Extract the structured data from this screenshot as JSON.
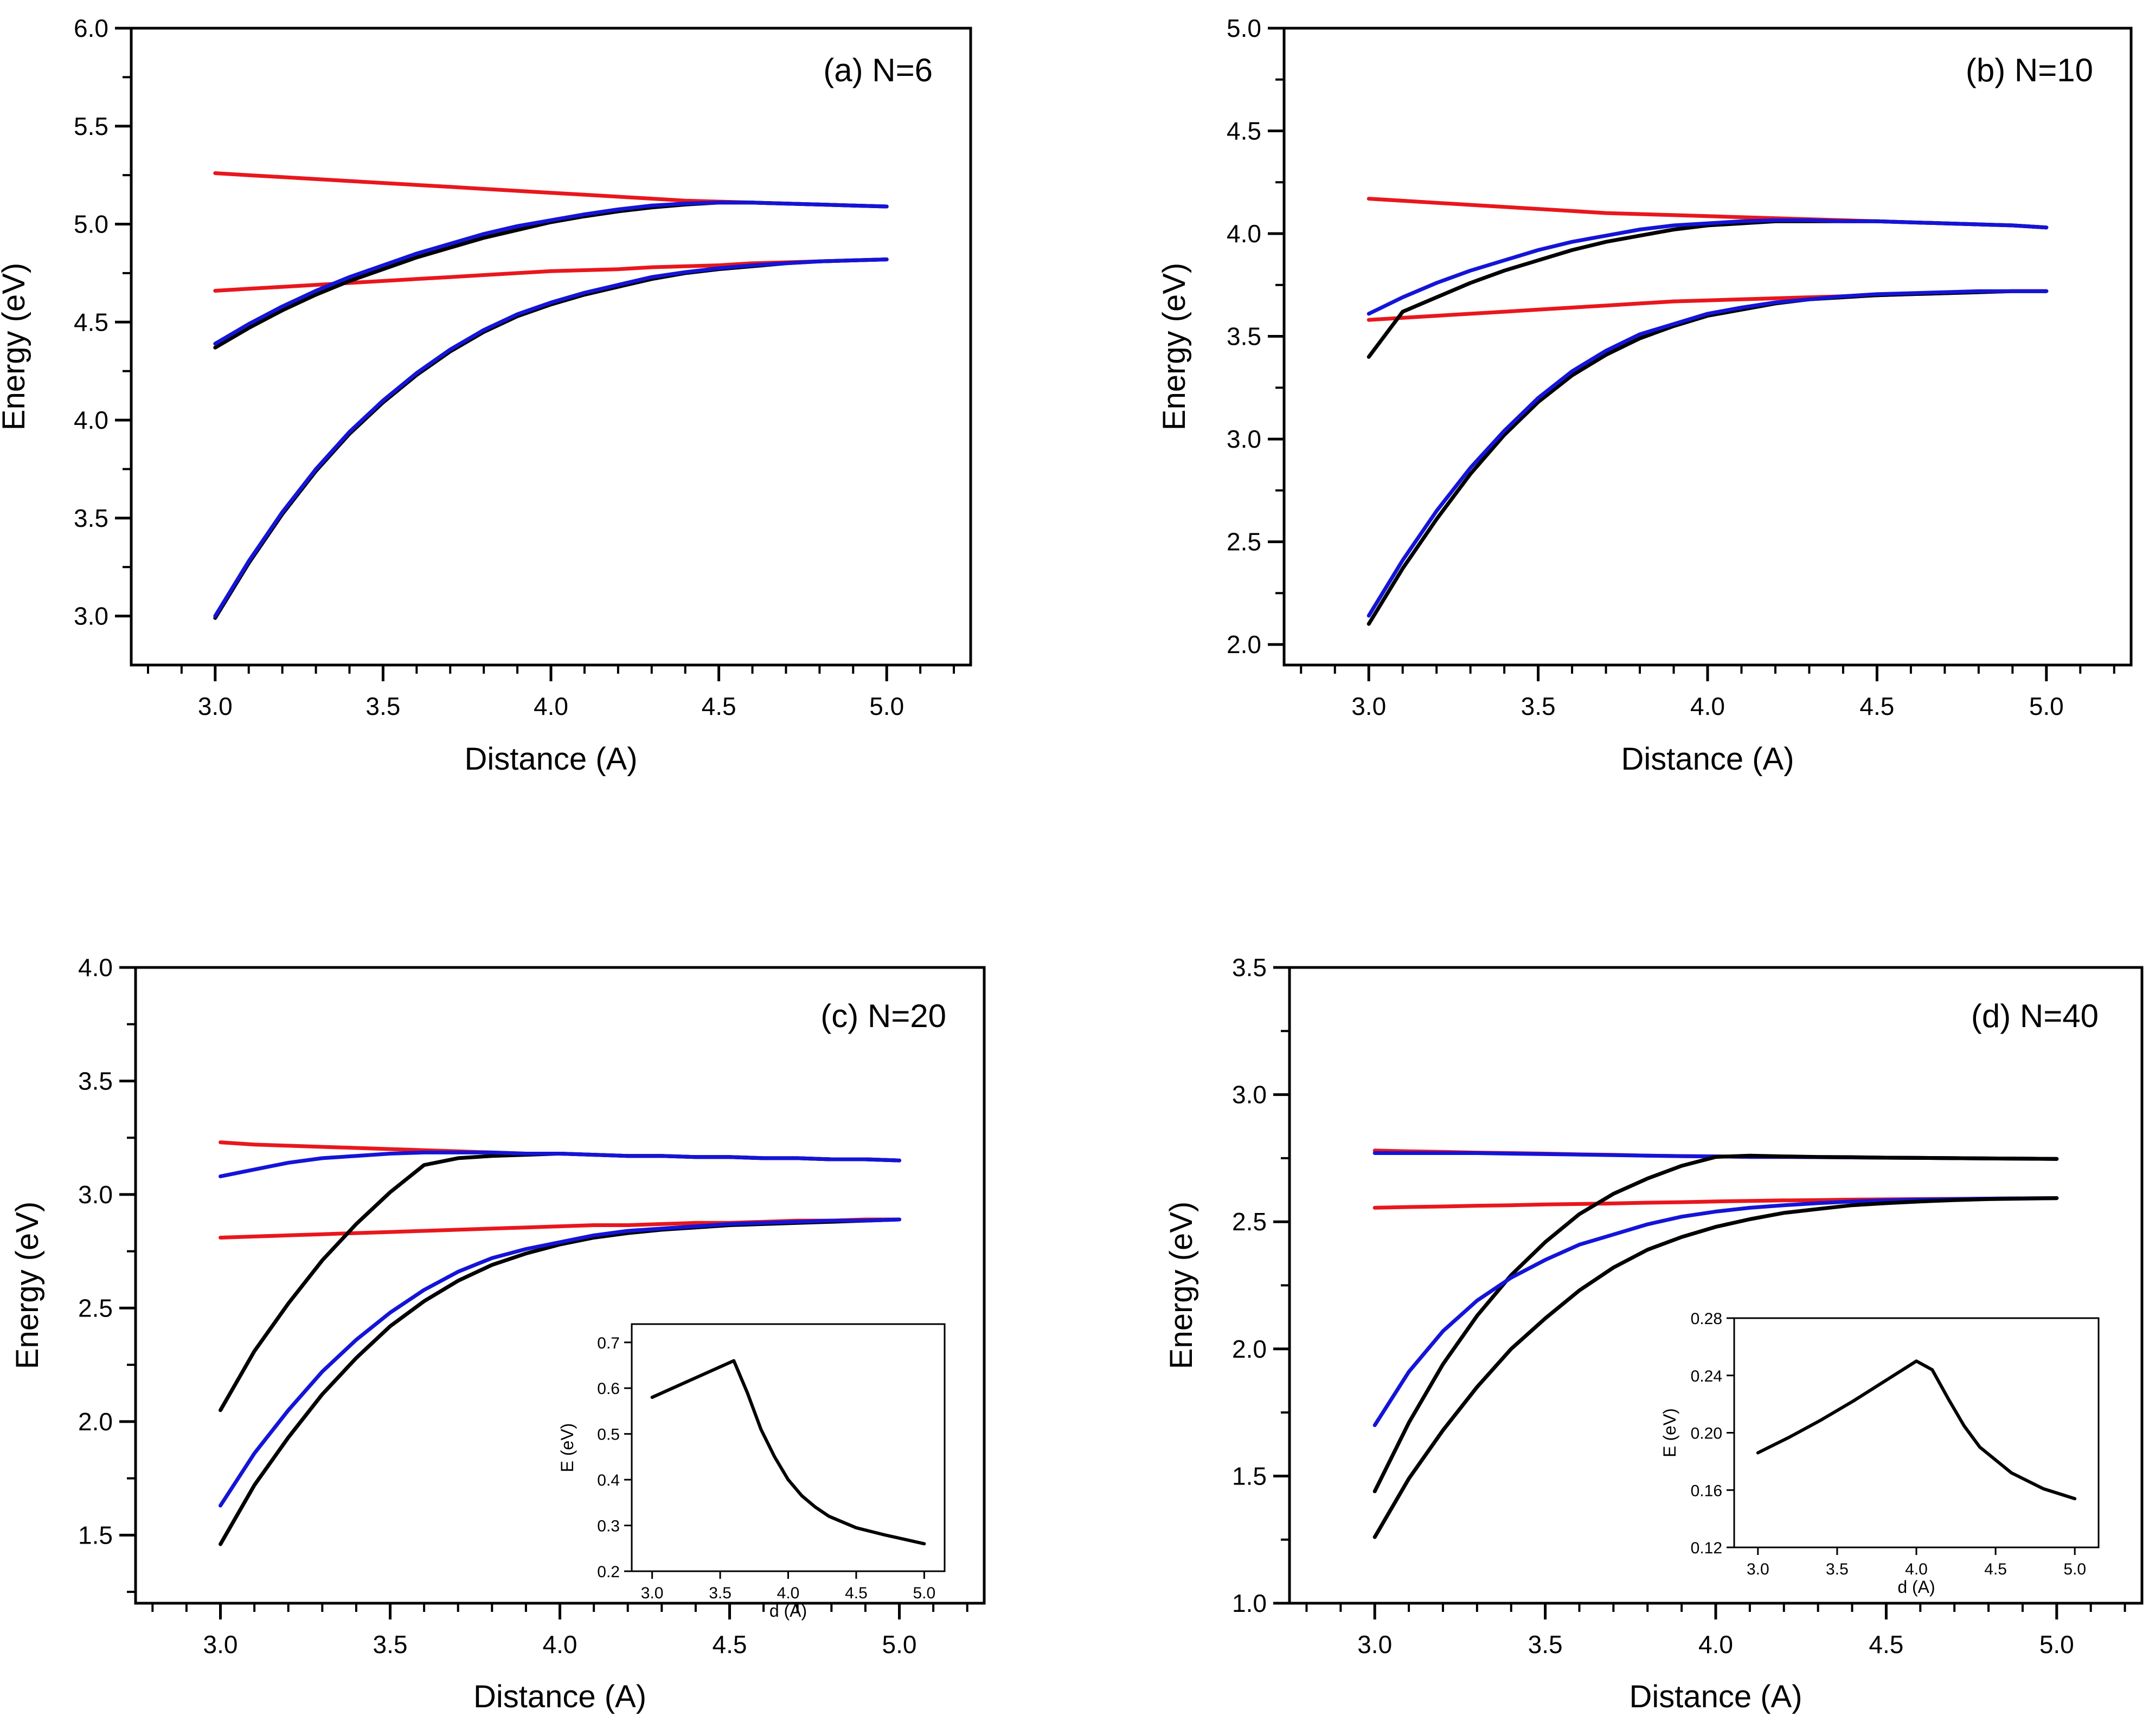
{
  "figure": {
    "colors": {
      "red": "#e8171d",
      "blue": "#1414d8",
      "black": "#000000"
    }
  },
  "chart_data": [
    {
      "id": "a",
      "type": "line",
      "title": "",
      "annotation": "(a) N=6",
      "xlabel": "Distance (A)",
      "ylabel": "Energy (eV)",
      "xlim": [
        2.75,
        5.25
      ],
      "ylim": [
        2.75,
        6.0
      ],
      "xticks": [
        3.0,
        3.5,
        4.0,
        4.5,
        5.0
      ],
      "xtick_labels": [
        "3.0",
        "3.5",
        "4.0",
        "4.5",
        "5.0"
      ],
      "yticks": [
        3.0,
        3.5,
        4.0,
        4.5,
        5.0,
        5.5,
        6.0
      ],
      "ytick_labels": [
        "3.0",
        "3.5",
        "4.0",
        "4.5",
        "5.0",
        "5.5",
        "6.0"
      ],
      "x": [
        3.0,
        3.1,
        3.2,
        3.3,
        3.4,
        3.5,
        3.6,
        3.7,
        3.8,
        3.9,
        4.0,
        4.1,
        4.2,
        4.3,
        4.4,
        4.5,
        4.6,
        4.7,
        4.8,
        4.9,
        5.0
      ],
      "series": [
        {
          "name": "red-upper",
          "color": "red",
          "values": [
            5.26,
            5.25,
            5.24,
            5.23,
            5.22,
            5.21,
            5.2,
            5.19,
            5.18,
            5.17,
            5.16,
            5.15,
            5.14,
            5.13,
            5.12,
            5.115,
            5.11,
            5.105,
            5.1,
            5.095,
            5.09
          ]
        },
        {
          "name": "red-lower",
          "color": "red",
          "values": [
            4.66,
            4.67,
            4.68,
            4.69,
            4.7,
            4.71,
            4.72,
            4.73,
            4.74,
            4.75,
            4.76,
            4.765,
            4.77,
            4.78,
            4.785,
            4.79,
            4.8,
            4.805,
            4.81,
            4.815,
            4.82
          ]
        },
        {
          "name": "black-upper",
          "color": "black",
          "values": [
            4.37,
            4.47,
            4.56,
            4.64,
            4.71,
            4.77,
            4.83,
            4.88,
            4.93,
            4.97,
            5.01,
            5.04,
            5.065,
            5.085,
            5.1,
            5.11,
            5.11,
            5.105,
            5.1,
            5.095,
            5.09
          ]
        },
        {
          "name": "blue-upper",
          "color": "blue",
          "values": [
            4.39,
            4.49,
            4.58,
            4.66,
            4.73,
            4.79,
            4.85,
            4.9,
            4.95,
            4.99,
            5.02,
            5.05,
            5.075,
            5.095,
            5.105,
            5.11,
            5.11,
            5.105,
            5.1,
            5.095,
            5.09
          ]
        },
        {
          "name": "black-lower",
          "color": "black",
          "values": [
            2.99,
            3.27,
            3.52,
            3.74,
            3.93,
            4.09,
            4.23,
            4.35,
            4.45,
            4.53,
            4.59,
            4.64,
            4.68,
            4.72,
            4.75,
            4.77,
            4.785,
            4.8,
            4.81,
            4.815,
            4.82
          ]
        },
        {
          "name": "blue-lower",
          "color": "blue",
          "values": [
            3.0,
            3.28,
            3.53,
            3.75,
            3.94,
            4.1,
            4.24,
            4.36,
            4.46,
            4.54,
            4.6,
            4.65,
            4.69,
            4.73,
            4.755,
            4.775,
            4.79,
            4.8,
            4.81,
            4.815,
            4.82
          ]
        }
      ]
    },
    {
      "id": "b",
      "type": "line",
      "title": "",
      "annotation": "(b) N=10",
      "xlabel": "Distance (A)",
      "ylabel": "Energy (eV)",
      "xlim": [
        2.75,
        5.25
      ],
      "ylim": [
        1.9,
        5.0
      ],
      "xticks": [
        3.0,
        3.5,
        4.0,
        4.5,
        5.0
      ],
      "xtick_labels": [
        "3.0",
        "3.5",
        "4.0",
        "4.5",
        "5.0"
      ],
      "yticks": [
        2.0,
        2.5,
        3.0,
        3.5,
        4.0,
        4.5,
        5.0
      ],
      "ytick_labels": [
        "2.0",
        "2.5",
        "3.0",
        "3.5",
        "4.0",
        "4.5",
        "5.0"
      ],
      "x": [
        3.0,
        3.1,
        3.2,
        3.3,
        3.4,
        3.5,
        3.6,
        3.7,
        3.8,
        3.9,
        4.0,
        4.1,
        4.2,
        4.3,
        4.4,
        4.5,
        4.6,
        4.7,
        4.8,
        4.9,
        5.0
      ],
      "series": [
        {
          "name": "red-upper",
          "color": "red",
          "values": [
            4.17,
            4.16,
            4.15,
            4.14,
            4.13,
            4.12,
            4.11,
            4.1,
            4.095,
            4.09,
            4.085,
            4.08,
            4.075,
            4.07,
            4.065,
            4.06,
            4.055,
            4.05,
            4.045,
            4.04,
            4.03
          ]
        },
        {
          "name": "red-lower",
          "color": "red",
          "values": [
            3.58,
            3.59,
            3.6,
            3.61,
            3.62,
            3.63,
            3.64,
            3.65,
            3.66,
            3.67,
            3.675,
            3.68,
            3.685,
            3.69,
            3.695,
            3.7,
            3.705,
            3.71,
            3.715,
            3.72,
            3.72
          ]
        },
        {
          "name": "black-upper",
          "color": "black",
          "values": [
            3.4,
            3.62,
            3.69,
            3.76,
            3.82,
            3.87,
            3.92,
            3.96,
            3.99,
            4.02,
            4.04,
            4.05,
            4.06,
            4.06,
            4.06,
            4.06,
            4.055,
            4.05,
            4.045,
            4.04,
            4.03
          ]
        },
        {
          "name": "blue-upper",
          "color": "blue",
          "values": [
            3.61,
            3.69,
            3.76,
            3.82,
            3.87,
            3.92,
            3.96,
            3.99,
            4.02,
            4.04,
            4.05,
            4.06,
            4.065,
            4.065,
            4.06,
            4.06,
            4.055,
            4.05,
            4.045,
            4.04,
            4.03
          ]
        },
        {
          "name": "black-lower",
          "color": "black",
          "values": [
            2.1,
            2.37,
            2.61,
            2.83,
            3.02,
            3.18,
            3.31,
            3.41,
            3.49,
            3.55,
            3.6,
            3.63,
            3.66,
            3.68,
            3.69,
            3.7,
            3.705,
            3.71,
            3.715,
            3.72,
            3.72
          ]
        },
        {
          "name": "blue-lower",
          "color": "blue",
          "values": [
            2.14,
            2.41,
            2.65,
            2.86,
            3.04,
            3.2,
            3.33,
            3.43,
            3.51,
            3.56,
            3.61,
            3.64,
            3.665,
            3.68,
            3.695,
            3.705,
            3.71,
            3.715,
            3.72,
            3.72,
            3.72
          ]
        }
      ]
    },
    {
      "id": "c",
      "type": "line",
      "title": "",
      "annotation": "(c) N=20",
      "xlabel": "Distance (A)",
      "ylabel": "Energy (eV)",
      "xlim": [
        2.75,
        5.25
      ],
      "ylim": [
        1.2,
        4.0
      ],
      "xticks": [
        3.0,
        3.5,
        4.0,
        4.5,
        5.0
      ],
      "xtick_labels": [
        "3.0",
        "3.5",
        "4.0",
        "4.5",
        "5.0"
      ],
      "yticks": [
        1.5,
        2.0,
        2.5,
        3.0,
        3.5,
        4.0
      ],
      "ytick_labels": [
        "1.5",
        "2.0",
        "2.5",
        "3.0",
        "3.5",
        "4.0"
      ],
      "x": [
        3.0,
        3.1,
        3.2,
        3.3,
        3.4,
        3.5,
        3.6,
        3.7,
        3.8,
        3.9,
        4.0,
        4.1,
        4.2,
        4.3,
        4.4,
        4.5,
        4.6,
        4.7,
        4.8,
        4.9,
        5.0
      ],
      "series": [
        {
          "name": "red-upper",
          "color": "red",
          "values": [
            3.23,
            3.22,
            3.215,
            3.21,
            3.205,
            3.2,
            3.195,
            3.19,
            3.185,
            3.18,
            3.18,
            3.175,
            3.17,
            3.17,
            3.165,
            3.165,
            3.16,
            3.16,
            3.155,
            3.155,
            3.15
          ]
        },
        {
          "name": "red-lower",
          "color": "red",
          "values": [
            2.81,
            2.815,
            2.82,
            2.825,
            2.83,
            2.835,
            2.84,
            2.845,
            2.85,
            2.855,
            2.86,
            2.865,
            2.865,
            2.87,
            2.875,
            2.875,
            2.88,
            2.885,
            2.885,
            2.89,
            2.89
          ]
        },
        {
          "name": "black-upper",
          "color": "black",
          "values": [
            2.05,
            2.31,
            2.52,
            2.71,
            2.87,
            3.01,
            3.13,
            3.16,
            3.17,
            3.175,
            3.18,
            3.175,
            3.17,
            3.17,
            3.165,
            3.165,
            3.16,
            3.16,
            3.155,
            3.155,
            3.15
          ]
        },
        {
          "name": "blue-upper",
          "color": "blue",
          "values": [
            3.08,
            3.11,
            3.14,
            3.16,
            3.17,
            3.18,
            3.185,
            3.185,
            3.185,
            3.18,
            3.18,
            3.175,
            3.17,
            3.17,
            3.165,
            3.165,
            3.16,
            3.16,
            3.155,
            3.155,
            3.15
          ]
        },
        {
          "name": "black-lower",
          "color": "black",
          "values": [
            1.46,
            1.72,
            1.93,
            2.12,
            2.28,
            2.42,
            2.53,
            2.62,
            2.69,
            2.74,
            2.78,
            2.81,
            2.83,
            2.845,
            2.855,
            2.865,
            2.87,
            2.875,
            2.88,
            2.885,
            2.89
          ]
        },
        {
          "name": "blue-lower",
          "color": "blue",
          "values": [
            1.63,
            1.86,
            2.05,
            2.22,
            2.36,
            2.48,
            2.58,
            2.66,
            2.72,
            2.76,
            2.79,
            2.82,
            2.84,
            2.85,
            2.86,
            2.87,
            2.875,
            2.88,
            2.885,
            2.885,
            2.89
          ]
        }
      ],
      "inset": {
        "type": "line",
        "xlabel": "d (A)",
        "ylabel": "E (eV)",
        "xlim": [
          2.85,
          5.15
        ],
        "ylim": [
          0.2,
          0.74
        ],
        "xticks": [
          3.0,
          3.5,
          4.0,
          4.5,
          5.0
        ],
        "xtick_labels": [
          "3.0",
          "3.5",
          "4.0",
          "4.5",
          "5.0"
        ],
        "yticks": [
          0.2,
          0.3,
          0.4,
          0.5,
          0.6,
          0.7
        ],
        "ytick_labels": [
          "0.2",
          "0.3",
          "0.4",
          "0.5",
          "0.6",
          "0.7"
        ],
        "x": [
          3.0,
          3.6,
          3.7,
          3.8,
          3.9,
          4.0,
          4.1,
          4.2,
          4.3,
          4.5,
          4.7,
          5.0
        ],
        "values": [
          0.58,
          0.66,
          0.59,
          0.51,
          0.45,
          0.4,
          0.365,
          0.34,
          0.32,
          0.295,
          0.28,
          0.26
        ]
      }
    },
    {
      "id": "d",
      "type": "line",
      "title": "",
      "annotation": "(d) N=40",
      "xlabel": "Distance (A)",
      "ylabel": "Energy (eV)",
      "xlim": [
        2.75,
        5.25
      ],
      "ylim": [
        1.0,
        3.5
      ],
      "xticks": [
        3.0,
        3.5,
        4.0,
        4.5,
        5.0
      ],
      "xtick_labels": [
        "3.0",
        "3.5",
        "4.0",
        "4.5",
        "5.0"
      ],
      "yticks": [
        1.0,
        1.5,
        2.0,
        2.5,
        3.0,
        3.5
      ],
      "ytick_labels": [
        "1.0",
        "1.5",
        "2.0",
        "2.5",
        "3.0",
        "3.5"
      ],
      "x": [
        3.0,
        3.1,
        3.2,
        3.3,
        3.4,
        3.5,
        3.6,
        3.7,
        3.8,
        3.9,
        4.0,
        4.1,
        4.2,
        4.3,
        4.4,
        4.5,
        4.6,
        4.7,
        4.8,
        4.9,
        5.0
      ],
      "series": [
        {
          "name": "red-upper",
          "color": "red",
          "values": [
            2.78,
            2.777,
            2.775,
            2.772,
            2.77,
            2.768,
            2.765,
            2.763,
            2.76,
            2.758,
            2.757,
            2.755,
            2.755,
            2.754,
            2.753,
            2.752,
            2.751,
            2.75,
            2.749,
            2.748,
            2.747
          ]
        },
        {
          "name": "red-lower",
          "color": "red",
          "values": [
            2.555,
            2.558,
            2.56,
            2.563,
            2.565,
            2.568,
            2.57,
            2.572,
            2.575,
            2.577,
            2.58,
            2.582,
            2.584,
            2.585,
            2.587,
            2.588,
            2.589,
            2.59,
            2.591,
            2.592,
            2.593
          ]
        },
        {
          "name": "blue-upper",
          "color": "blue",
          "values": [
            2.77,
            2.77,
            2.77,
            2.77,
            2.768,
            2.766,
            2.764,
            2.762,
            2.76,
            2.758,
            2.757,
            2.755,
            2.755,
            2.754,
            2.753,
            2.752,
            2.751,
            2.75,
            2.749,
            2.748,
            2.747
          ]
        },
        {
          "name": "black-upper",
          "color": "black",
          "values": [
            1.44,
            1.71,
            1.94,
            2.13,
            2.29,
            2.42,
            2.53,
            2.61,
            2.67,
            2.72,
            2.755,
            2.76,
            2.757,
            2.755,
            2.754,
            2.752,
            2.751,
            2.75,
            2.749,
            2.748,
            2.747
          ]
        },
        {
          "name": "blue-lower",
          "color": "blue",
          "values": [
            1.7,
            1.91,
            2.07,
            2.19,
            2.28,
            2.35,
            2.41,
            2.45,
            2.49,
            2.52,
            2.54,
            2.555,
            2.565,
            2.573,
            2.58,
            2.584,
            2.587,
            2.589,
            2.591,
            2.592,
            2.593
          ]
        },
        {
          "name": "black-lower",
          "color": "black",
          "values": [
            1.26,
            1.49,
            1.68,
            1.85,
            2.0,
            2.12,
            2.23,
            2.32,
            2.39,
            2.44,
            2.48,
            2.51,
            2.535,
            2.55,
            2.565,
            2.573,
            2.58,
            2.585,
            2.589,
            2.591,
            2.593
          ]
        }
      ],
      "inset": {
        "type": "line",
        "xlabel": "d (A)",
        "ylabel": "E (eV)",
        "xlim": [
          2.85,
          5.15
        ],
        "ylim": [
          0.12,
          0.28
        ],
        "xticks": [
          3.0,
          3.5,
          4.0,
          4.5,
          5.0
        ],
        "xtick_labels": [
          "3.0",
          "3.5",
          "4.0",
          "4.5",
          "5.0"
        ],
        "yticks": [
          0.12,
          0.16,
          0.2,
          0.24,
          0.28
        ],
        "ytick_labels": [
          "0.12",
          "0.16",
          "0.20",
          "0.24",
          "0.28"
        ],
        "x": [
          3.0,
          3.2,
          3.4,
          3.6,
          3.8,
          4.0,
          4.1,
          4.2,
          4.3,
          4.4,
          4.6,
          4.8,
          5.0
        ],
        "values": [
          0.186,
          0.197,
          0.209,
          0.222,
          0.236,
          0.25,
          0.244,
          0.224,
          0.205,
          0.19,
          0.172,
          0.161,
          0.154
        ]
      }
    }
  ]
}
